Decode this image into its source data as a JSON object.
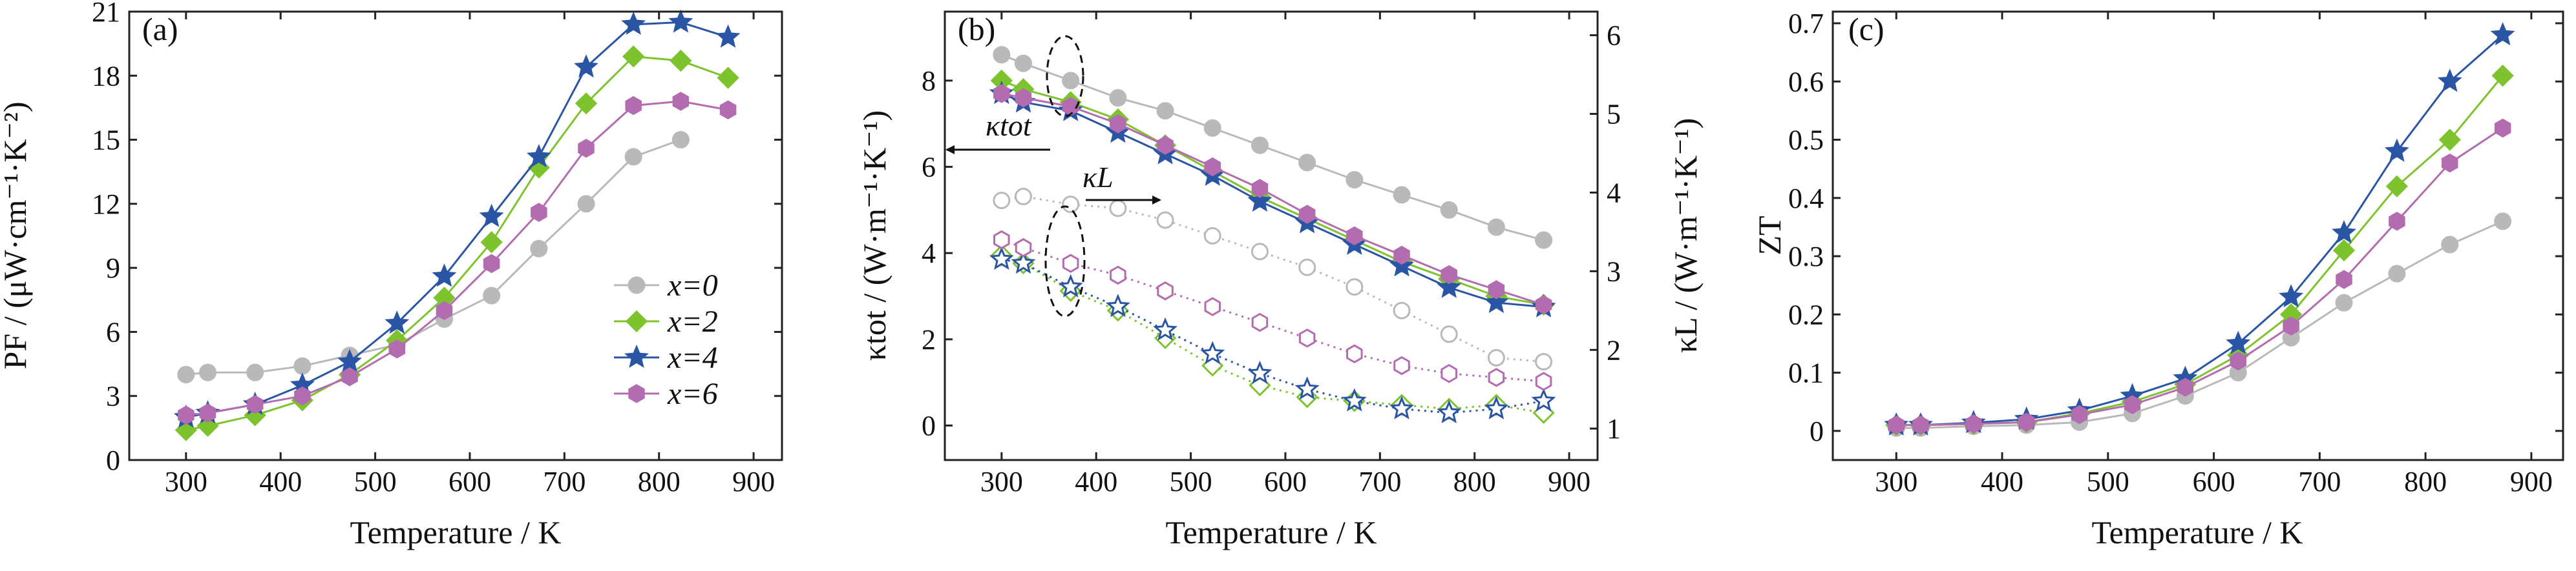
{
  "chart_data": [
    {
      "type": "line",
      "panel_label": "(a)",
      "xlabel": "Temperature / K",
      "ylabel": "PF / (μW·cm⁻¹·K⁻²)",
      "xlim": [
        240,
        930
      ],
      "ylim": [
        0,
        21
      ],
      "xticks": [
        300,
        400,
        500,
        600,
        700,
        800,
        900
      ],
      "yticks": [
        0,
        3,
        6,
        9,
        12,
        15,
        18,
        21
      ],
      "legend": {
        "placement": "lower-right",
        "entries": [
          "x=0",
          "x=2",
          "x=4",
          "x=6"
        ]
      },
      "series": [
        {
          "name": "x=0",
          "color": "#b9b9b9",
          "marker": "circle",
          "fill": "filled",
          "x": [
            300,
            323,
            373,
            423,
            473,
            523,
            573,
            623,
            673,
            723,
            773,
            823
          ],
          "y": [
            4.0,
            4.1,
            4.1,
            4.4,
            4.9,
            5.4,
            6.6,
            7.7,
            9.9,
            12.0,
            14.2,
            15.0
          ]
        },
        {
          "name": "x=2",
          "color": "#7dc32e",
          "marker": "diamond",
          "fill": "filled",
          "x": [
            300,
            323,
            373,
            423,
            473,
            523,
            573,
            623,
            673,
            723,
            773,
            823,
            873
          ],
          "y": [
            1.4,
            1.6,
            2.1,
            2.8,
            4.0,
            5.6,
            7.6,
            10.2,
            13.7,
            16.7,
            18.9,
            18.7,
            17.9
          ]
        },
        {
          "name": "x=4",
          "color": "#2a55a5",
          "marker": "star",
          "fill": "filled",
          "x": [
            300,
            323,
            373,
            423,
            473,
            523,
            573,
            623,
            673,
            723,
            773,
            823,
            873
          ],
          "y": [
            2.0,
            2.2,
            2.6,
            3.5,
            4.6,
            6.4,
            8.6,
            11.4,
            14.2,
            18.4,
            20.4,
            20.5,
            19.8
          ]
        },
        {
          "name": "x=6",
          "color": "#b46cb0",
          "marker": "hexagon",
          "fill": "filled",
          "x": [
            300,
            323,
            373,
            423,
            473,
            523,
            573,
            623,
            673,
            723,
            773,
            823,
            873
          ],
          "y": [
            2.1,
            2.2,
            2.6,
            3.0,
            3.9,
            5.2,
            7.0,
            9.2,
            11.6,
            14.6,
            16.6,
            16.8,
            16.4
          ]
        }
      ]
    },
    {
      "type": "line",
      "panel_label": "(b)",
      "xlabel": "Temperature / K",
      "ylabel_left": "κtot / (W·m⁻¹·K⁻¹)",
      "ylabel_right": "κL / (W·m⁻¹·K⁻¹)",
      "xlim": [
        240,
        930
      ],
      "ylim_left": [
        -0.8,
        9.6
      ],
      "ylim_right": [
        0.6,
        6.3
      ],
      "xticks": [
        300,
        400,
        500,
        600,
        700,
        800,
        900
      ],
      "yticks_left": [
        0,
        2,
        4,
        6,
        8
      ],
      "yticks_right": [
        1,
        2,
        3,
        4,
        5,
        6
      ],
      "annotations": [
        {
          "text": "κtot",
          "arrow": "left"
        },
        {
          "text": "κL",
          "arrow": "right"
        }
      ],
      "series": [
        {
          "name": "x=0",
          "quantity": "κtot",
          "axis": "left",
          "color": "#b9b9b9",
          "marker": "circle",
          "fill": "filled",
          "x": [
            300,
            323,
            373,
            423,
            473,
            523,
            573,
            623,
            673,
            723,
            773,
            823,
            873
          ],
          "y": [
            8.6,
            8.4,
            8.0,
            7.6,
            7.3,
            6.9,
            6.5,
            6.1,
            5.7,
            5.35,
            5.0,
            4.6,
            4.3
          ]
        },
        {
          "name": "x=2",
          "quantity": "κtot",
          "axis": "left",
          "color": "#7dc32e",
          "marker": "diamond",
          "fill": "filled",
          "x": [
            300,
            323,
            373,
            423,
            473,
            523,
            573,
            623,
            673,
            723,
            773,
            823,
            873
          ],
          "y": [
            8.0,
            7.8,
            7.5,
            7.1,
            6.5,
            5.9,
            5.3,
            4.8,
            4.3,
            3.8,
            3.4,
            3.0,
            2.8
          ]
        },
        {
          "name": "x=4",
          "quantity": "κtot",
          "axis": "left",
          "color": "#2a55a5",
          "marker": "star",
          "fill": "filled",
          "x": [
            300,
            323,
            373,
            423,
            473,
            523,
            573,
            623,
            673,
            723,
            773,
            823,
            873
          ],
          "y": [
            7.7,
            7.5,
            7.3,
            6.8,
            6.3,
            5.8,
            5.2,
            4.7,
            4.2,
            3.7,
            3.2,
            2.85,
            2.75
          ]
        },
        {
          "name": "x=6",
          "quantity": "κtot",
          "axis": "left",
          "color": "#b46cb0",
          "marker": "hexagon",
          "fill": "filled",
          "x": [
            300,
            323,
            373,
            423,
            473,
            523,
            573,
            623,
            673,
            723,
            773,
            823,
            873
          ],
          "y": [
            7.7,
            7.6,
            7.4,
            7.0,
            6.5,
            6.0,
            5.5,
            4.9,
            4.4,
            3.95,
            3.5,
            3.15,
            2.8
          ]
        },
        {
          "name": "x=0",
          "quantity": "κL",
          "axis": "right",
          "color": "#b9b9b9",
          "marker": "circle",
          "fill": "open",
          "x": [
            300,
            323,
            373,
            423,
            473,
            523,
            573,
            623,
            673,
            723,
            773,
            823,
            873
          ],
          "y": [
            3.9,
            3.95,
            3.85,
            3.8,
            3.65,
            3.45,
            3.25,
            3.05,
            2.8,
            2.5,
            2.2,
            1.9,
            1.85
          ]
        },
        {
          "name": "x=2",
          "quantity": "κL",
          "axis": "right",
          "color": "#7dc32e",
          "marker": "diamond",
          "fill": "open",
          "x": [
            300,
            323,
            373,
            423,
            473,
            523,
            573,
            623,
            673,
            723,
            773,
            823,
            873
          ],
          "y": [
            3.2,
            3.1,
            2.75,
            2.5,
            2.15,
            1.8,
            1.55,
            1.4,
            1.35,
            1.3,
            1.25,
            1.3,
            1.2
          ]
        },
        {
          "name": "x=4",
          "quantity": "κL",
          "axis": "right",
          "color": "#2a55a5",
          "marker": "star",
          "fill": "open",
          "x": [
            300,
            323,
            373,
            423,
            473,
            523,
            573,
            623,
            673,
            723,
            773,
            823,
            873
          ],
          "y": [
            3.15,
            3.1,
            2.8,
            2.55,
            2.25,
            1.95,
            1.7,
            1.5,
            1.35,
            1.25,
            1.2,
            1.25,
            1.35
          ]
        },
        {
          "name": "x=6",
          "quantity": "κL",
          "axis": "right",
          "color": "#b46cb0",
          "marker": "hexagon",
          "fill": "open",
          "x": [
            300,
            323,
            373,
            423,
            473,
            523,
            573,
            623,
            673,
            723,
            773,
            823,
            873
          ],
          "y": [
            3.4,
            3.3,
            3.1,
            2.95,
            2.75,
            2.55,
            2.35,
            2.15,
            1.95,
            1.8,
            1.7,
            1.65,
            1.6
          ]
        }
      ]
    },
    {
      "type": "line",
      "panel_label": "(c)",
      "xlabel": "Temperature / K",
      "ylabel": "ZT",
      "xlim": [
        240,
        930
      ],
      "ylim": [
        -0.05,
        0.72
      ],
      "xticks": [
        300,
        400,
        500,
        600,
        700,
        800,
        900
      ],
      "yticks": [
        0,
        0.1,
        0.2,
        0.3,
        0.4,
        0.5,
        0.6,
        0.7
      ],
      "series": [
        {
          "name": "x=0",
          "color": "#b9b9b9",
          "marker": "circle",
          "fill": "filled",
          "x": [
            300,
            323,
            373,
            423,
            473,
            523,
            573,
            623,
            673,
            723,
            773,
            823,
            873
          ],
          "y": [
            0.005,
            0.005,
            0.008,
            0.01,
            0.015,
            0.03,
            0.06,
            0.1,
            0.16,
            0.22,
            0.27,
            0.32,
            0.36
          ]
        },
        {
          "name": "x=2",
          "color": "#7dc32e",
          "marker": "diamond",
          "fill": "filled",
          "x": [
            300,
            323,
            373,
            423,
            473,
            523,
            573,
            623,
            673,
            723,
            773,
            823,
            873
          ],
          "y": [
            0.01,
            0.01,
            0.012,
            0.015,
            0.03,
            0.05,
            0.08,
            0.13,
            0.2,
            0.31,
            0.42,
            0.5,
            0.61
          ]
        },
        {
          "name": "x=4",
          "color": "#2a55a5",
          "marker": "star",
          "fill": "filled",
          "x": [
            300,
            323,
            373,
            423,
            473,
            523,
            573,
            623,
            673,
            723,
            773,
            823,
            873
          ],
          "y": [
            0.01,
            0.01,
            0.014,
            0.02,
            0.035,
            0.06,
            0.09,
            0.15,
            0.23,
            0.34,
            0.48,
            0.6,
            0.68
          ]
        },
        {
          "name": "x=6",
          "color": "#b46cb0",
          "marker": "hexagon",
          "fill": "filled",
          "x": [
            300,
            323,
            373,
            423,
            473,
            523,
            573,
            623,
            673,
            723,
            773,
            823,
            873
          ],
          "y": [
            0.01,
            0.01,
            0.012,
            0.015,
            0.028,
            0.045,
            0.075,
            0.12,
            0.18,
            0.26,
            0.36,
            0.46,
            0.52
          ]
        }
      ]
    }
  ]
}
